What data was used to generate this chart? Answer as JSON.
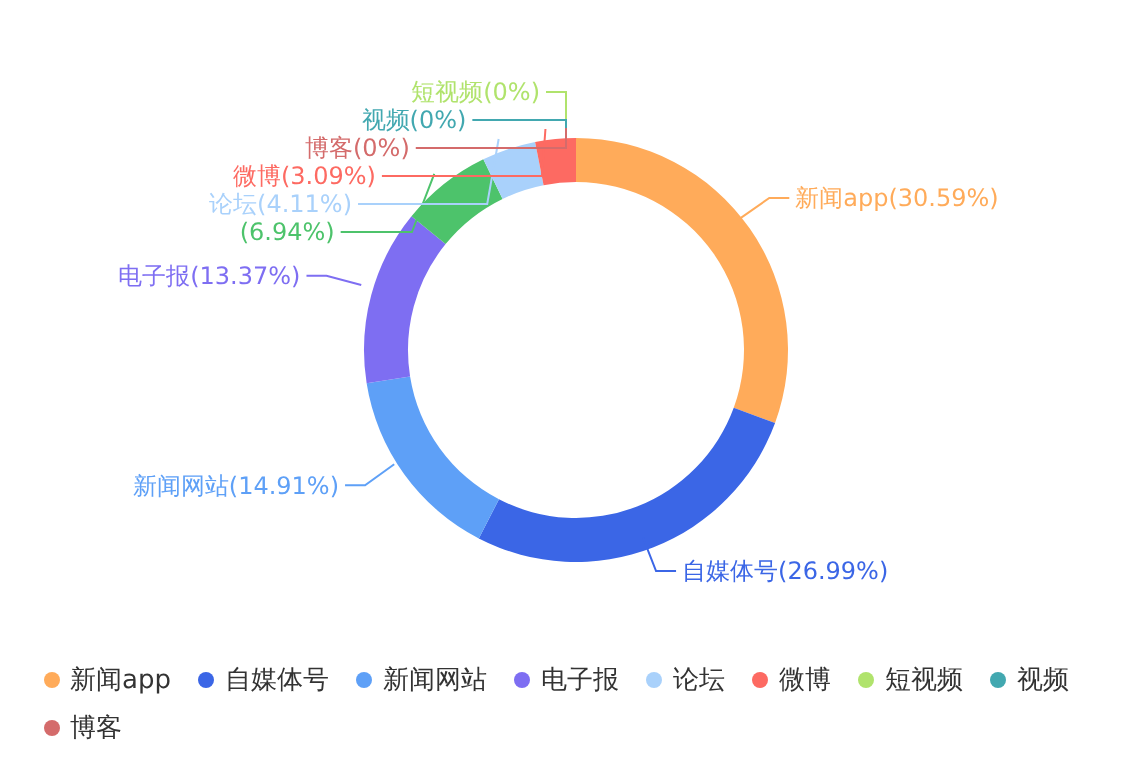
{
  "chart_data": {
    "type": "donut",
    "categories": [
      "新闻app",
      "自媒体号",
      "新闻网站",
      "电子报",
      null,
      "论坛",
      "微博",
      "短视频",
      "视频",
      "博客"
    ],
    "values": [
      30.59,
      26.99,
      14.91,
      13.37,
      6.94,
      4.11,
      3.09,
      0,
      0,
      0
    ],
    "value_labels": [
      "(30.59%)",
      "(26.99%)",
      "(14.91%)",
      "(13.37%)",
      "(6.94%)",
      "(4.11%)",
      "(3.09%)",
      "(0%)",
      "(0%)",
      "(0%)"
    ],
    "colors": [
      "#ffab5a",
      "#3b66e6",
      "#5ea0f7",
      "#7e6ef2",
      "#4dc36b",
      "#a9d1fb",
      "#fd6a62",
      "#b0e36c",
      "#42a8b0",
      "#d46b6b"
    ],
    "legend": "bottom"
  }
}
